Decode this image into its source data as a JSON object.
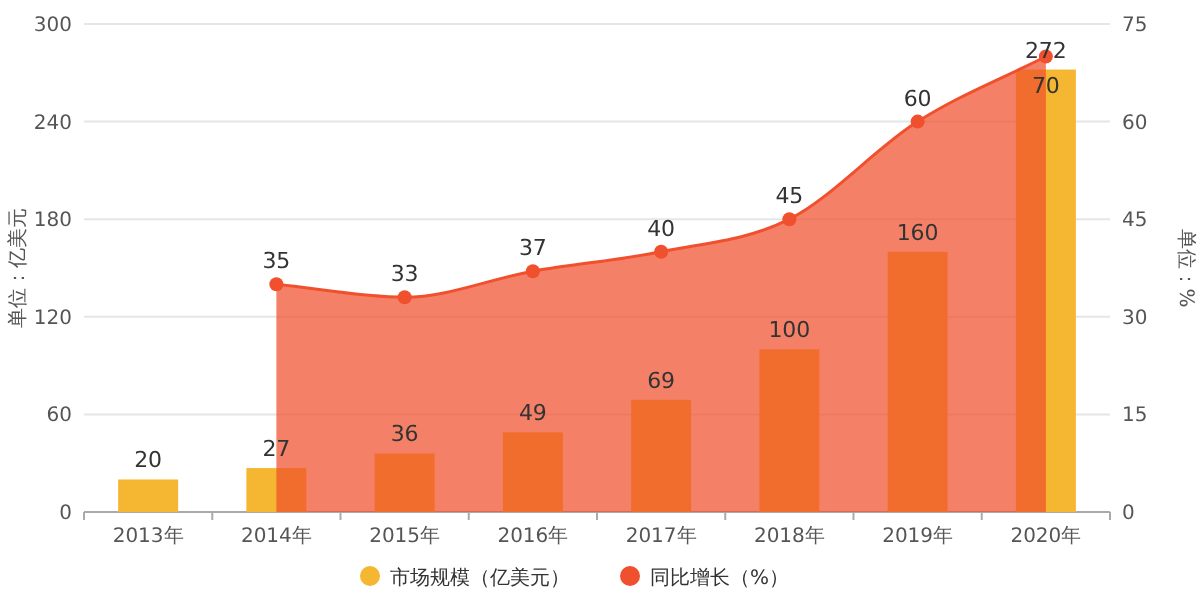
{
  "chart_data": {
    "type": "bar",
    "categories": [
      "2013年",
      "2014年",
      "2015年",
      "2016年",
      "2017年",
      "2018年",
      "2019年",
      "2020年"
    ],
    "series": [
      {
        "name": "市场规模（亿美元）",
        "color": "#f5b731",
        "values": [
          20,
          27,
          36,
          49,
          69,
          100,
          160,
          272
        ]
      },
      {
        "name": "同比增长（%）",
        "type": "area",
        "axis": "y2",
        "color": "#f0502d",
        "values": [
          null,
          35,
          33,
          37,
          40,
          45,
          60,
          70
        ]
      }
    ],
    "ylim": [
      0,
      300
    ],
    "yticks": [
      0,
      60,
      120,
      180,
      240,
      300
    ],
    "y2lim": [
      0,
      75
    ],
    "y2ticks": [
      0,
      15,
      30,
      45,
      60,
      75
    ],
    "ylabel": "单位：亿美元",
    "y2label": "单位：%",
    "grid": "y",
    "legend": "bottom",
    "data_labels": true,
    "marker": "circle"
  }
}
